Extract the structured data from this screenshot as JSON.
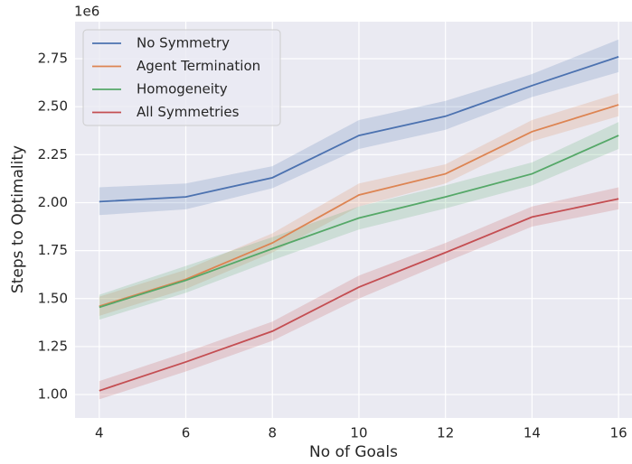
{
  "chart_data": {
    "type": "line",
    "xlabel": "No of Goals",
    "ylabel": "Steps to Optimality",
    "y_offset_label": "1e6",
    "x": [
      4,
      6,
      8,
      10,
      12,
      14,
      16
    ],
    "series": [
      {
        "name": "No Symmetry",
        "color": "#4c72b0",
        "values": [
          2.005,
          2.03,
          2.13,
          2.35,
          2.45,
          2.61,
          2.76
        ],
        "lower": [
          1.935,
          1.965,
          2.075,
          2.28,
          2.38,
          2.55,
          2.68
        ],
        "upper": [
          2.08,
          2.1,
          2.19,
          2.43,
          2.53,
          2.67,
          2.85
        ]
      },
      {
        "name": "Agent Termination",
        "color": "#dd8452",
        "values": [
          1.46,
          1.6,
          1.79,
          2.04,
          2.15,
          2.37,
          2.51
        ],
        "lower": [
          1.41,
          1.55,
          1.74,
          1.98,
          2.1,
          2.32,
          2.45
        ],
        "upper": [
          1.51,
          1.65,
          1.84,
          2.1,
          2.2,
          2.43,
          2.57
        ]
      },
      {
        "name": "Homogeneity",
        "color": "#55a868",
        "values": [
          1.455,
          1.595,
          1.76,
          1.92,
          2.03,
          2.15,
          2.35
        ],
        "lower": [
          1.39,
          1.53,
          1.7,
          1.86,
          1.97,
          2.09,
          2.28
        ],
        "upper": [
          1.52,
          1.67,
          1.82,
          1.98,
          2.09,
          2.21,
          2.42
        ]
      },
      {
        "name": "All Symmetries",
        "color": "#c44e52",
        "values": [
          1.02,
          1.17,
          1.33,
          1.56,
          1.74,
          1.925,
          2.02
        ],
        "lower": [
          0.975,
          1.12,
          1.28,
          1.5,
          1.69,
          1.875,
          1.965
        ],
        "upper": [
          1.07,
          1.22,
          1.38,
          1.62,
          1.79,
          1.98,
          2.08
        ]
      }
    ],
    "xlim": [
      3.44,
      16.31
    ],
    "ylim": [
      0.878,
      2.943
    ],
    "xticks": [
      4,
      6,
      8,
      10,
      12,
      14,
      16
    ],
    "yticks": [
      {
        "value": 1,
        "label": "1.00"
      },
      1.25,
      {
        "value": 1.5,
        "label": "1.50"
      },
      1.75,
      {
        "value": 2,
        "label": "2.00"
      },
      2.25,
      {
        "value": 2.5,
        "label": "2.50"
      },
      2.75
    ],
    "grid": true,
    "legend": "upper left"
  }
}
